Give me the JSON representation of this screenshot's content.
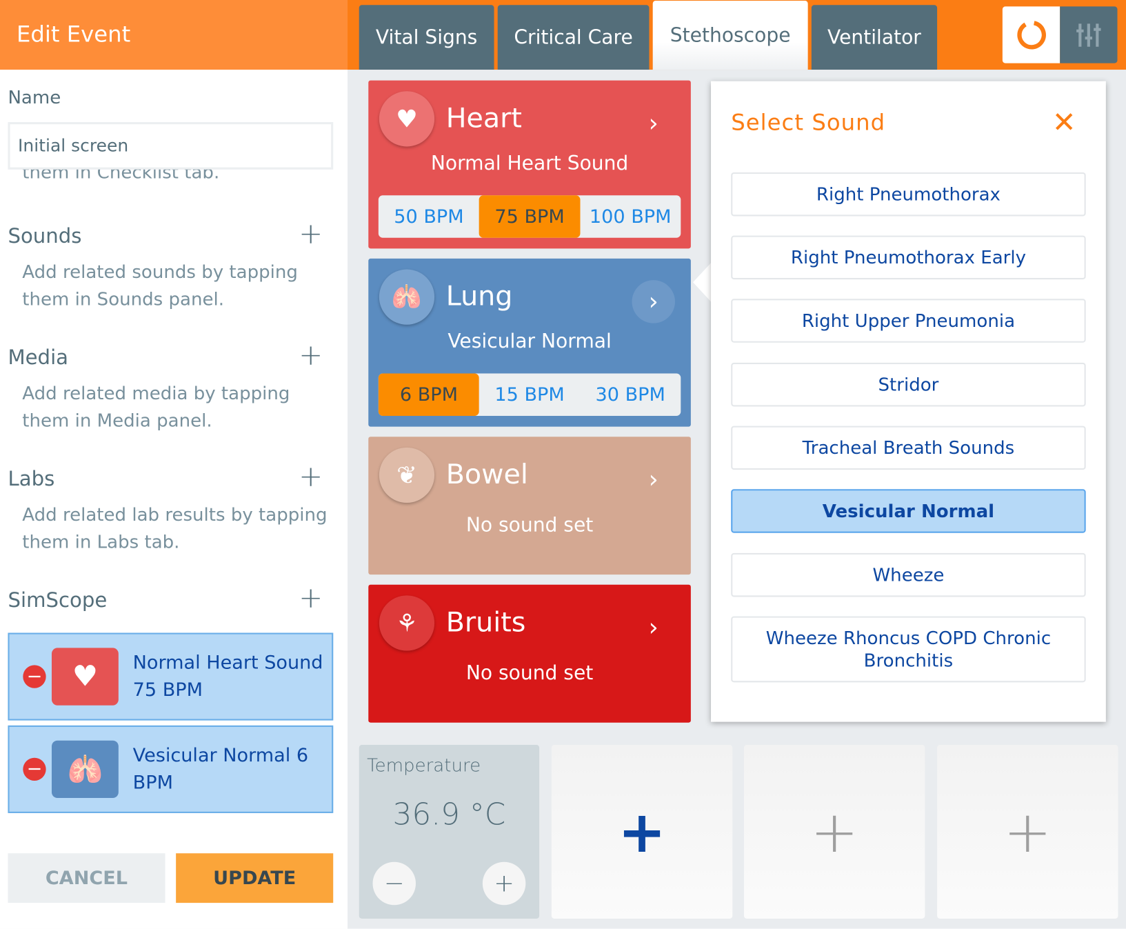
{
  "header": {
    "title": "Edit Event",
    "tabs": [
      {
        "label": "Vital Signs"
      },
      {
        "label": "Critical Care"
      },
      {
        "label": "Stethoscope",
        "active": true
      },
      {
        "label": "Ventilator"
      }
    ],
    "icons": [
      "refresh-icon",
      "mixer-icon"
    ]
  },
  "form": {
    "name_label": "Name",
    "name_value": "Initial screen",
    "clipped_text": "them in Checklist tab.",
    "sounds": {
      "title": "Sounds",
      "hint": "Add related sounds by tapping them in Sounds panel."
    },
    "media": {
      "title": "Media",
      "hint": "Add related media by tapping them in Media panel."
    },
    "labs": {
      "title": "Labs",
      "hint": "Add related lab results by tapping them in Labs tab."
    },
    "simscope": {
      "title": "SimScope",
      "items": [
        {
          "label": "Normal Heart Sound 75 BPM",
          "icon": "heart-icon"
        },
        {
          "label": "Vesicular Normal 6 BPM",
          "icon": "lungs-icon"
        }
      ]
    },
    "cancel": "CANCEL",
    "update": "UPDATE"
  },
  "stethoscope": {
    "heart": {
      "title": "Heart",
      "sound": "Normal Heart Sound",
      "rates": [
        "50 BPM",
        "75 BPM",
        "100 BPM"
      ],
      "selected": 1,
      "color": "#e55353"
    },
    "lung": {
      "title": "Lung",
      "sound": "Vesicular Normal",
      "rates": [
        "6 BPM",
        "15 BPM",
        "30 BPM"
      ],
      "selected": 0,
      "color": "#5b8cc0"
    },
    "bowel": {
      "title": "Bowel",
      "sound": "No sound set",
      "color": "#d4a892"
    },
    "bruits": {
      "title": "Bruits",
      "sound": "No sound set",
      "color": "#d71818"
    }
  },
  "select_sound": {
    "title": "Select Sound",
    "options": [
      "Right Pneumothorax",
      "Right Pneumothorax Early",
      "Right Upper Pneumonia",
      "Stridor",
      "Tracheal Breath Sounds",
      "Vesicular Normal",
      "Wheeze",
      "Wheeze Rhoncus COPD Chronic Bronchitis"
    ],
    "selected": "Vesicular Normal"
  },
  "temperature": {
    "label": "Temperature",
    "value": "36.9 °C",
    "minus": "−",
    "plus": "+"
  },
  "tiles": {
    "add": "+"
  }
}
